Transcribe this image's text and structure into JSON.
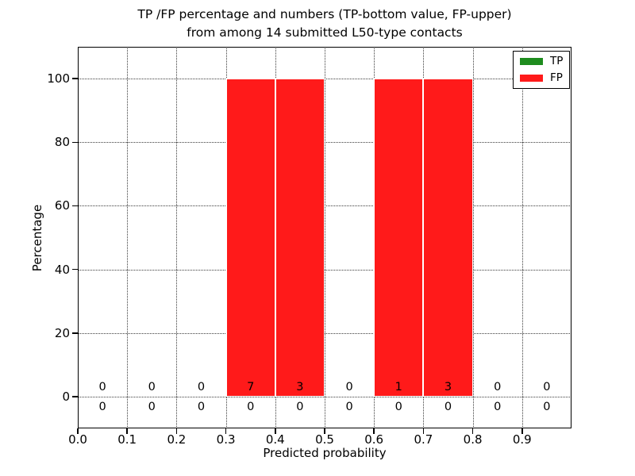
{
  "chart_data": {
    "type": "bar",
    "title_lines": [
      "TP /FP percentage and numbers (TP-bottom value, FP-upper)",
      "from among 14 submitted L50-type contacts"
    ],
    "xlabel": "Predicted probability",
    "ylabel": "Percentage",
    "xlim": [
      0.0,
      1.0
    ],
    "ylim": [
      -10,
      110
    ],
    "grid": true,
    "grid_style": "dotted",
    "x_tick_values": [
      0.0,
      0.1,
      0.2,
      0.3,
      0.4,
      0.5,
      0.6,
      0.7,
      0.8,
      0.9
    ],
    "x_tick_labels": [
      "0.0",
      "0.1",
      "0.2",
      "0.3",
      "0.4",
      "0.5",
      "0.6",
      "0.7",
      "0.8",
      "0.9"
    ],
    "y_tick_values": [
      0,
      20,
      40,
      60,
      80,
      100
    ],
    "y_tick_labels": [
      "0",
      "20",
      "40",
      "60",
      "80",
      "100"
    ],
    "bin_edges": [
      0.0,
      0.1,
      0.2,
      0.3,
      0.4,
      0.5,
      0.6,
      0.7,
      0.8,
      0.9,
      1.0
    ],
    "series": [
      {
        "name": "TP",
        "color": "#1e8c1e",
        "percent": [
          0,
          0,
          0,
          0,
          0,
          0,
          0,
          0,
          0,
          0
        ],
        "counts": [
          0,
          0,
          0,
          0,
          0,
          0,
          0,
          0,
          0,
          0
        ]
      },
      {
        "name": "FP",
        "color": "#ff1a1a",
        "percent": [
          0,
          0,
          0,
          100,
          100,
          0,
          100,
          100,
          0,
          0
        ],
        "counts": [
          0,
          0,
          0,
          7,
          3,
          0,
          1,
          3,
          0,
          0
        ]
      }
    ],
    "legend": {
      "position": "upper right",
      "entries": [
        "TP",
        "FP"
      ]
    },
    "annotation_note": "upper count row = FP numbers, lower count row = TP numbers"
  }
}
